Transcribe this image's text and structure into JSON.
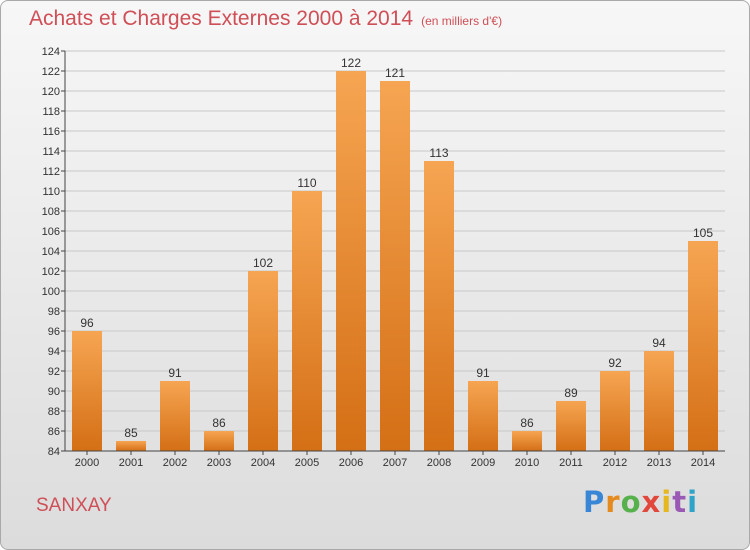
{
  "header": {
    "title": "Achats et Charges Externes 2000 à 2014",
    "subtitle": "(en milliers d'€)"
  },
  "footer": {
    "town": "SANXAY",
    "brand_letters": [
      "P",
      "r",
      "o",
      "x",
      "i",
      "t",
      "i"
    ]
  },
  "colors": {
    "bar_top": "#f6a552",
    "bar_bottom": "#d46f15",
    "title": "#cf4f57",
    "grid": "#c8c8c8"
  },
  "chart_data": {
    "type": "bar",
    "title": "Achats et Charges Externes 2000 à 2014",
    "subtitle": "(en milliers d'€)",
    "categories": [
      "2000",
      "2001",
      "2002",
      "2003",
      "2004",
      "2005",
      "2006",
      "2007",
      "2008",
      "2009",
      "2010",
      "2011",
      "2012",
      "2013",
      "2014"
    ],
    "values": [
      96,
      85,
      91,
      86,
      102,
      110,
      122,
      121,
      113,
      91,
      86,
      89,
      92,
      94,
      105
    ],
    "ylim": [
      84,
      124
    ],
    "yticks": [
      84,
      86,
      88,
      90,
      92,
      94,
      96,
      98,
      100,
      102,
      104,
      106,
      108,
      110,
      112,
      114,
      116,
      118,
      120,
      122,
      124
    ],
    "grid": true,
    "xlabel": "",
    "ylabel": ""
  }
}
